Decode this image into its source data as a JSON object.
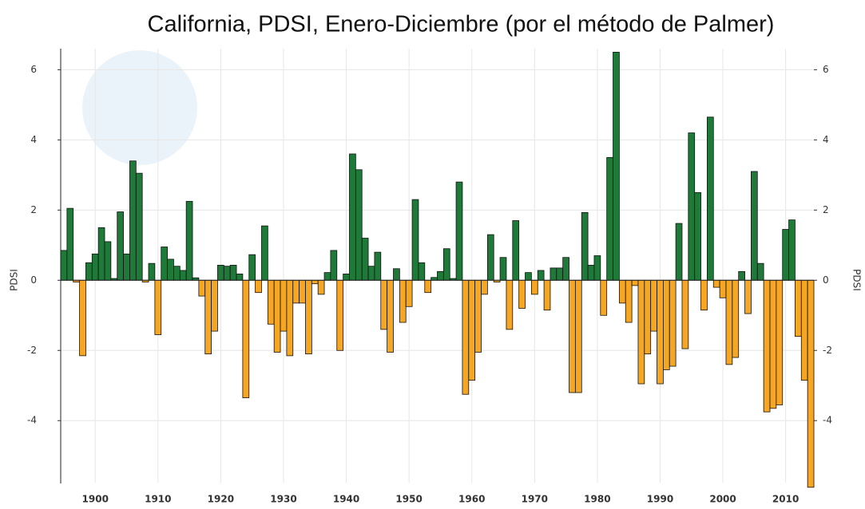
{
  "chart_data": {
    "type": "bar",
    "title": "California, PDSI, Enero-Diciembre (por el método de Palmer)",
    "ylabel": "PDSI",
    "y2label": "PDSI",
    "x": [
      1895,
      1896,
      1897,
      1898,
      1899,
      1900,
      1901,
      1902,
      1903,
      1904,
      1905,
      1906,
      1907,
      1908,
      1909,
      1910,
      1911,
      1912,
      1913,
      1914,
      1915,
      1916,
      1917,
      1918,
      1919,
      1920,
      1921,
      1922,
      1923,
      1924,
      1925,
      1926,
      1927,
      1928,
      1929,
      1930,
      1931,
      1932,
      1933,
      1934,
      1935,
      1936,
      1937,
      1938,
      1939,
      1940,
      1941,
      1942,
      1943,
      1944,
      1945,
      1946,
      1947,
      1948,
      1949,
      1950,
      1951,
      1952,
      1953,
      1954,
      1955,
      1956,
      1957,
      1958,
      1959,
      1960,
      1961,
      1962,
      1963,
      1964,
      1965,
      1966,
      1967,
      1968,
      1969,
      1970,
      1971,
      1972,
      1973,
      1974,
      1975,
      1976,
      1977,
      1978,
      1979,
      1980,
      1981,
      1982,
      1983,
      1984,
      1985,
      1986,
      1987,
      1988,
      1989,
      1990,
      1991,
      1992,
      1993,
      1994,
      1995,
      1996,
      1997,
      1998,
      1999,
      2000,
      2001,
      2002,
      2003,
      2004,
      2005,
      2006,
      2007,
      2008,
      2009,
      2010,
      2011,
      2012,
      2013,
      2014
    ],
    "values": [
      0.85,
      2.05,
      -0.05,
      -2.15,
      0.5,
      0.75,
      1.5,
      1.1,
      0.05,
      1.95,
      0.75,
      3.4,
      3.05,
      -0.05,
      0.48,
      -1.55,
      0.95,
      0.6,
      0.4,
      0.28,
      2.25,
      0.07,
      -0.45,
      -2.1,
      -1.45,
      0.43,
      0.4,
      0.43,
      0.18,
      -3.35,
      0.73,
      -0.35,
      1.55,
      -1.25,
      -2.05,
      -1.45,
      -2.15,
      -0.65,
      -0.65,
      -2.1,
      -0.1,
      -0.4,
      0.22,
      0.85,
      -2.0,
      0.18,
      3.6,
      3.15,
      1.2,
      0.4,
      0.8,
      -1.4,
      -2.05,
      0.33,
      -1.2,
      -0.75,
      2.3,
      0.5,
      -0.35,
      0.08,
      0.25,
      0.9,
      0.05,
      2.8,
      -3.25,
      -2.85,
      -2.05,
      -0.4,
      1.3,
      -0.05,
      0.65,
      -1.4,
      1.7,
      -0.8,
      0.22,
      -0.4,
      0.28,
      -0.85,
      0.35,
      0.35,
      0.65,
      -3.2,
      -3.2,
      1.93,
      0.43,
      0.7,
      -1.0,
      3.5,
      6.5,
      -0.65,
      -1.2,
      -0.15,
      -2.95,
      -2.1,
      -1.45,
      -2.95,
      -2.55,
      -2.45,
      1.62,
      -1.95,
      4.2,
      2.5,
      -0.85,
      4.65,
      -0.2,
      -0.5,
      -2.4,
      -2.2,
      0.25,
      -0.95,
      3.1,
      0.48,
      -3.75,
      -3.65,
      -3.55,
      1.45,
      1.72,
      -1.6,
      -2.85,
      -5.9
    ],
    "colors": {
      "positive": "#1f7a3a",
      "negative": "#f5a623"
    },
    "xlim": [
      1894.5,
      2014.5
    ],
    "xticks": [
      1900,
      1910,
      1920,
      1930,
      1940,
      1950,
      1960,
      1970,
      1980,
      1990,
      2000,
      2010
    ],
    "ylim": [
      -5.95,
      6.6
    ],
    "yticks": [
      -4,
      -2,
      0,
      2,
      4,
      6
    ],
    "y2lim": [
      -5.95,
      6.6
    ],
    "y2ticks": [
      -4,
      -2,
      0,
      2,
      4,
      6
    ],
    "grid": true
  }
}
